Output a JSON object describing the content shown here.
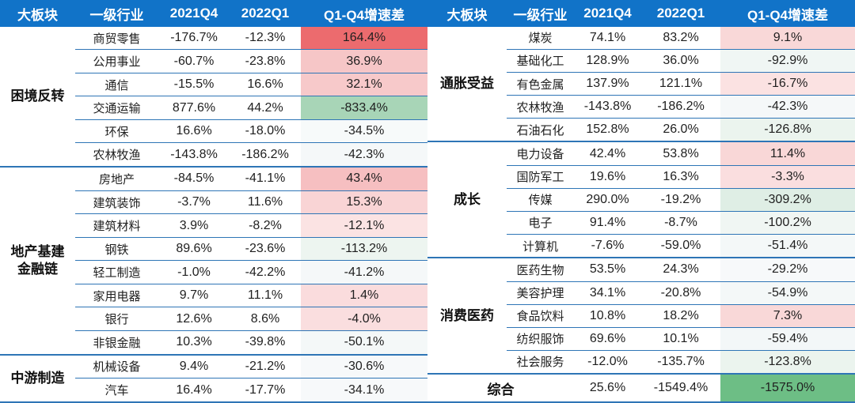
{
  "theme": {
    "header_bg": "#1173C8",
    "header_text": "#ffffff",
    "grid_line": "#2E75B6",
    "body_text": "#1f1f1f",
    "strong_red": "#EC6B6E",
    "strong_green": "#6DBE85"
  },
  "chart_data": {
    "type": "table",
    "columns": [
      "大板块",
      "一级行业",
      "2021Q4",
      "2022Q1",
      "Q1-Q4增速差"
    ],
    "tables": [
      {
        "groups": [
          {
            "label": "困境反转",
            "rows": 6
          },
          {
            "label": "地产基建\n金融链",
            "rows": 8
          },
          {
            "label": "中游制造",
            "rows": 2
          }
        ],
        "rows": [
          {
            "industry": "商贸零售",
            "q4_2021": "-176.7%",
            "q1_2022": "-12.3%",
            "diff": "164.4%",
            "diff_bg": "#EC6B6E"
          },
          {
            "industry": "公用事业",
            "q4_2021": "-60.7%",
            "q1_2022": "-23.8%",
            "diff": "36.9%",
            "diff_bg": "#F6C6C7"
          },
          {
            "industry": "通信",
            "q4_2021": "-15.5%",
            "q1_2022": "16.6%",
            "diff": "32.1%",
            "diff_bg": "#F7C9CA"
          },
          {
            "industry": "交通运输",
            "q4_2021": "877.6%",
            "q1_2022": "44.2%",
            "diff": "-833.4%",
            "diff_bg": "#A8D5B7"
          },
          {
            "industry": "环保",
            "q4_2021": "16.6%",
            "q1_2022": "-18.0%",
            "diff": "-34.5%",
            "diff_bg": "#F7FAFA"
          },
          {
            "industry": "农林牧渔",
            "q4_2021": "-143.8%",
            "q1_2022": "-186.2%",
            "diff": "-42.3%",
            "diff_bg": "#F5F8F9"
          },
          {
            "industry": "房地产",
            "q4_2021": "-84.5%",
            "q1_2022": "-41.1%",
            "diff": "43.4%",
            "diff_bg": "#F6BFC1"
          },
          {
            "industry": "建筑装饰",
            "q4_2021": "-3.7%",
            "q1_2022": "11.6%",
            "diff": "15.3%",
            "diff_bg": "#F9D4D5"
          },
          {
            "industry": "建筑材料",
            "q4_2021": "3.9%",
            "q1_2022": "-8.2%",
            "diff": "-12.1%",
            "diff_bg": "#FBE3E3"
          },
          {
            "industry": "钢铁",
            "q4_2021": "89.6%",
            "q1_2022": "-23.6%",
            "diff": "-113.2%",
            "diff_bg": "#EDF5F0"
          },
          {
            "industry": "轻工制造",
            "q4_2021": "-1.0%",
            "q1_2022": "-42.2%",
            "diff": "-41.2%",
            "diff_bg": "#F5F8F9"
          },
          {
            "industry": "家用电器",
            "q4_2021": "9.7%",
            "q1_2022": "11.1%",
            "diff": "1.4%",
            "diff_bg": "#FADCDD"
          },
          {
            "industry": "银行",
            "q4_2021": "12.6%",
            "q1_2022": "8.6%",
            "diff": "-4.0%",
            "diff_bg": "#FADEDF"
          },
          {
            "industry": "非银金融",
            "q4_2021": "10.3%",
            "q1_2022": "-39.8%",
            "diff": "-50.1%",
            "diff_bg": "#F4F8F8"
          },
          {
            "industry": "机械设备",
            "q4_2021": "9.4%",
            "q1_2022": "-21.2%",
            "diff": "-30.6%",
            "diff_bg": "#F7F9FA"
          },
          {
            "industry": "汽车",
            "q4_2021": "16.4%",
            "q1_2022": "-17.7%",
            "diff": "-34.1%",
            "diff_bg": "#F7F9FA"
          }
        ]
      },
      {
        "groups": [
          {
            "label": "通胀受益",
            "rows": 5
          },
          {
            "label": "成长",
            "rows": 5
          },
          {
            "label": "消费医药",
            "rows": 5
          }
        ],
        "rows": [
          {
            "industry": "煤炭",
            "q4_2021": "74.1%",
            "q1_2022": "83.2%",
            "diff": "9.1%",
            "diff_bg": "#F9D8D8"
          },
          {
            "industry": "基础化工",
            "q4_2021": "128.9%",
            "q1_2022": "36.0%",
            "diff": "-92.9%",
            "diff_bg": "#F0F6F4"
          },
          {
            "industry": "有色金属",
            "q4_2021": "137.9%",
            "q1_2022": "121.1%",
            "diff": "-16.7%",
            "diff_bg": "#FBE2E2"
          },
          {
            "industry": "农林牧渔",
            "q4_2021": "-143.8%",
            "q1_2022": "-186.2%",
            "diff": "-42.3%",
            "diff_bg": "#F5F8F9"
          },
          {
            "industry": "石油石化",
            "q4_2021": "152.8%",
            "q1_2022": "26.0%",
            "diff": "-126.8%",
            "diff_bg": "#EBF4EE"
          },
          {
            "industry": "电力设备",
            "q4_2021": "42.4%",
            "q1_2022": "53.8%",
            "diff": "11.4%",
            "diff_bg": "#F9D7D7"
          },
          {
            "industry": "国防军工",
            "q4_2021": "19.6%",
            "q1_2022": "16.3%",
            "diff": "-3.3%",
            "diff_bg": "#FADEDF"
          },
          {
            "industry": "传媒",
            "q4_2021": "290.0%",
            "q1_2022": "-19.2%",
            "diff": "-309.2%",
            "diff_bg": "#DFEEE5"
          },
          {
            "industry": "电子",
            "q4_2021": "91.4%",
            "q1_2022": "-8.7%",
            "diff": "-100.2%",
            "diff_bg": "#F0F6F3"
          },
          {
            "industry": "计算机",
            "q4_2021": "-7.6%",
            "q1_2022": "-59.0%",
            "diff": "-51.4%",
            "diff_bg": "#F4F8F8"
          },
          {
            "industry": "医药生物",
            "q4_2021": "53.5%",
            "q1_2022": "24.3%",
            "diff": "-29.2%",
            "diff_bg": "#F7F9FA"
          },
          {
            "industry": "美容护理",
            "q4_2021": "34.1%",
            "q1_2022": "-20.8%",
            "diff": "-54.9%",
            "diff_bg": "#F4F8F8"
          },
          {
            "industry": "食品饮料",
            "q4_2021": "10.8%",
            "q1_2022": "18.2%",
            "diff": "7.3%",
            "diff_bg": "#F9D8D8"
          },
          {
            "industry": "纺织服饰",
            "q4_2021": "69.6%",
            "q1_2022": "10.1%",
            "diff": "-59.4%",
            "diff_bg": "#F3F7F8"
          },
          {
            "industry": "社会服务",
            "q4_2021": "-12.0%",
            "q1_2022": "-135.7%",
            "diff": "-123.8%",
            "diff_bg": "#EBF4EE"
          }
        ],
        "summary_row": {
          "label": "综合",
          "q4_2021": "25.6%",
          "q1_2022": "-1549.4%",
          "diff": "-1575.0%",
          "diff_bg": "#6DBE85"
        }
      }
    ]
  }
}
